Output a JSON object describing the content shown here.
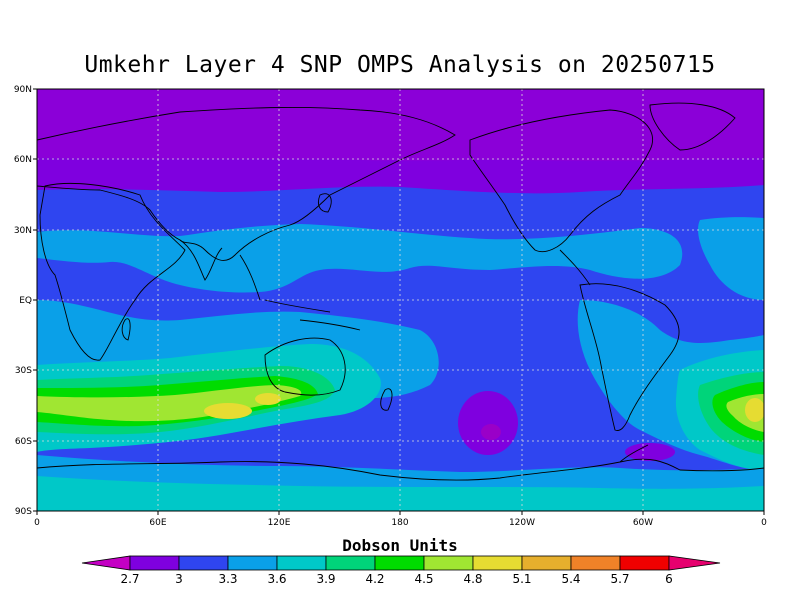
{
  "title": "Umkehr Layer 4 SNP OMPS Analysis on 20250715",
  "y_ticks": [
    "90N",
    "60N",
    "30N",
    "EQ",
    "30S",
    "60S",
    "90S"
  ],
  "x_ticks": [
    "0",
    "60E",
    "120E",
    "180",
    "120W",
    "60W",
    "0"
  ],
  "legend": {
    "title": "Dobson Units",
    "levels": [
      "2.7",
      "3",
      "3.3",
      "3.6",
      "3.9",
      "4.2",
      "4.5",
      "4.8",
      "5.1",
      "5.4",
      "5.7",
      "6"
    ],
    "colors": [
      "#c400c4",
      "#7f00df",
      "#2f45f0",
      "#0aa0e8",
      "#00c8c8",
      "#00d47a",
      "#00dc00",
      "#a0e632",
      "#e6dc32",
      "#e6af2d",
      "#f08228",
      "#f00000",
      "#e6006e"
    ]
  }
}
